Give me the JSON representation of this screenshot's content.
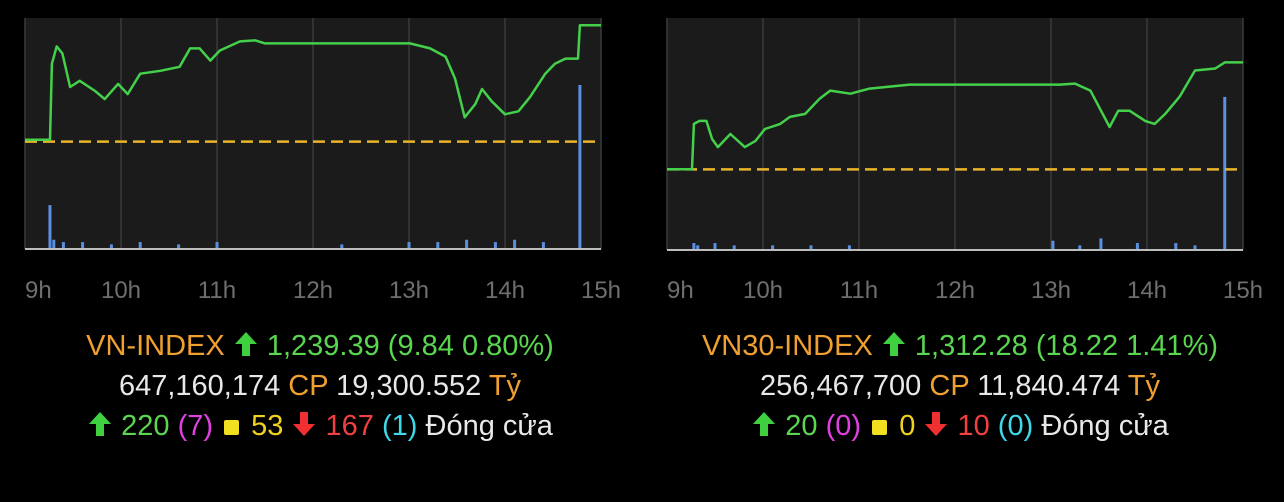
{
  "chart_data": [
    {
      "type": "line",
      "color": "#44d04a",
      "grid": true,
      "xlim": [
        9,
        15
      ],
      "xticks": [
        {
          "value": 9,
          "label": "9h"
        },
        {
          "value": 10,
          "label": "10h"
        },
        {
          "value": 11,
          "label": "11h"
        },
        {
          "value": 12,
          "label": "12h"
        },
        {
          "value": 13,
          "label": "13h"
        },
        {
          "value": 14,
          "label": "14h"
        },
        {
          "value": 15,
          "label": "15h"
        }
      ],
      "ylim": [
        1220.48,
        1240
      ],
      "reference": 1229.55,
      "reference_color": "#e8b528",
      "x": [
        9.0,
        9.26,
        9.28,
        9.33,
        9.39,
        9.47,
        9.57,
        9.73,
        9.83,
        9.97,
        10.07,
        10.2,
        10.41,
        10.61,
        10.72,
        10.82,
        10.93,
        11.03,
        11.24,
        11.4,
        11.5,
        13.01,
        13.22,
        13.38,
        13.48,
        13.58,
        13.69,
        13.76,
        13.86,
        14.0,
        14.14,
        14.26,
        14.42,
        14.52,
        14.63,
        14.76,
        14.78,
        15.0
      ],
      "values": [
        1229.72,
        1229.72,
        1236.14,
        1237.6,
        1237.0,
        1234.17,
        1234.69,
        1233.83,
        1233.15,
        1234.43,
        1233.57,
        1235.29,
        1235.54,
        1235.88,
        1237.43,
        1237.43,
        1236.4,
        1237.25,
        1238.02,
        1238.11,
        1237.85,
        1237.85,
        1237.43,
        1236.74,
        1234.86,
        1231.6,
        1232.72,
        1234.0,
        1232.97,
        1231.86,
        1232.12,
        1233.32,
        1235.29,
        1236.14,
        1236.57,
        1236.57,
        1239.39,
        1239.39
      ],
      "y2lim": [
        0,
        100
      ],
      "volume": {
        "color": "#5b8fe0",
        "x": [
          9.26,
          9.3,
          9.4,
          9.6,
          9.9,
          10.2,
          10.6,
          11.0,
          12.3,
          13.0,
          13.3,
          13.6,
          13.9,
          14.1,
          14.4,
          14.78
        ],
        "values": [
          19,
          4,
          3,
          3,
          2,
          3,
          2,
          3,
          2,
          3,
          3,
          4,
          3,
          4,
          3,
          71
        ]
      }
    },
    {
      "type": "line",
      "color": "#44d04a",
      "grid": true,
      "xlim": [
        9,
        15
      ],
      "xticks": [
        {
          "value": 9,
          "label": "9h"
        },
        {
          "value": 10,
          "label": "10h"
        },
        {
          "value": 11,
          "label": "11h"
        },
        {
          "value": 12,
          "label": "12h"
        },
        {
          "value": 13,
          "label": "13h"
        },
        {
          "value": 14,
          "label": "14h"
        },
        {
          "value": 15,
          "label": "15h"
        }
      ],
      "ylim": [
        1280.31,
        1319.85
      ],
      "reference": 1294.06,
      "reference_color": "#e8b528",
      "x": [
        9.0,
        9.26,
        9.28,
        9.34,
        9.41,
        9.47,
        9.53,
        9.66,
        9.81,
        9.92,
        10.02,
        10.18,
        10.28,
        10.44,
        10.59,
        10.7,
        10.91,
        11.11,
        11.32,
        11.53,
        13.09,
        13.25,
        13.41,
        13.51,
        13.61,
        13.7,
        13.82,
        13.98,
        14.08,
        14.19,
        14.34,
        14.5,
        14.71,
        14.81,
        15.0
      ],
      "values": [
        1294.06,
        1294.06,
        1301.8,
        1302.31,
        1302.31,
        1299.22,
        1297.84,
        1300.08,
        1297.84,
        1298.87,
        1300.94,
        1301.8,
        1303.0,
        1303.51,
        1306.09,
        1307.47,
        1306.95,
        1307.81,
        1308.16,
        1308.5,
        1308.5,
        1308.67,
        1307.47,
        1304.37,
        1301.28,
        1304.03,
        1304.03,
        1302.31,
        1301.8,
        1303.51,
        1306.44,
        1310.91,
        1311.25,
        1312.28,
        1312.28
      ],
      "y2lim": [
        0,
        100
      ],
      "volume": {
        "color": "#5b8fe0",
        "x": [
          9.28,
          9.32,
          9.5,
          9.7,
          10.1,
          10.5,
          10.9,
          13.02,
          13.3,
          13.52,
          13.9,
          14.3,
          14.5,
          14.81
        ],
        "values": [
          3,
          2,
          3,
          2,
          2,
          2,
          2,
          4,
          2,
          5,
          3,
          3,
          2,
          66
        ]
      }
    }
  ],
  "summary": [
    {
      "name": "VN-INDEX",
      "price": "1,239.39",
      "change": "(9.84 0.80%)",
      "volume": "647,160,174",
      "volume_unit": "CP",
      "value": "19,300.552",
      "value_unit": "Tỷ",
      "up": "220",
      "ceiling": "(7)",
      "unchanged": "53",
      "down": "167",
      "floor": "(1)",
      "status": "Đóng cửa"
    },
    {
      "name": "VN30-INDEX",
      "price": "1,312.28",
      "change": "(18.22 1.41%)",
      "volume": "256,467,700",
      "volume_unit": "CP",
      "value": "11,840.474",
      "value_unit": "Tỷ",
      "up": "20",
      "ceiling": "(0)",
      "unchanged": "0",
      "down": "10",
      "floor": "(0)",
      "status": "Đóng cửa"
    }
  ]
}
